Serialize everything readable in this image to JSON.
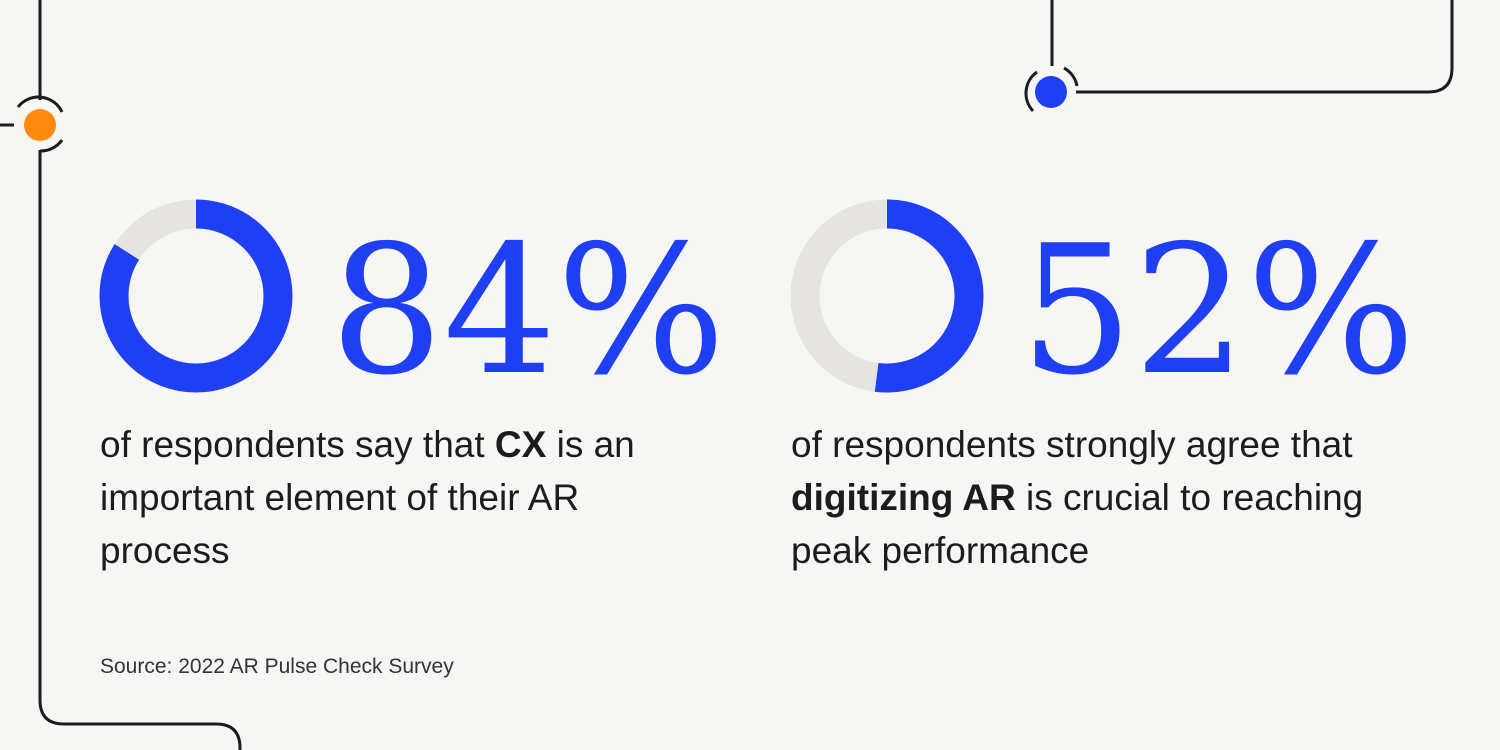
{
  "chart_data": [
    {
      "type": "donut",
      "values": [
        84
      ],
      "value_labels": [
        "84%"
      ],
      "lim": [
        0,
        100
      ],
      "color": "#1f3ff5",
      "track_color": "#e5e4e0",
      "caption": {
        "before": "of respondents say that ",
        "bold": "CX",
        "after": " is an important element of their AR process"
      }
    },
    {
      "type": "donut",
      "values": [
        52
      ],
      "value_labels": [
        "52%"
      ],
      "lim": [
        0,
        100
      ],
      "color": "#1f3ff5",
      "track_color": "#e5e4e0",
      "caption": {
        "before": "of respondents strongly agree that ",
        "bold": "digitizing AR",
        "after": " is crucial to reaching peak performance"
      }
    }
  ],
  "source": "Source: 2022 AR Pulse Check Survey"
}
